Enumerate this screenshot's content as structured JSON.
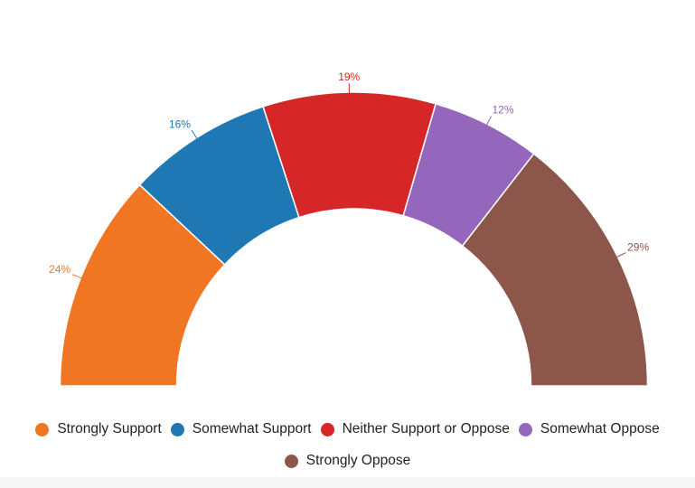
{
  "chart_data": {
    "type": "pie",
    "variant": "half-donut",
    "categories": [
      "Strongly Support",
      "Somewhat Support",
      "Neither Support or Oppose",
      "Somewhat Oppose",
      "Strongly Oppose"
    ],
    "values": [
      24,
      16,
      19,
      12,
      29
    ],
    "value_labels": [
      "24%",
      "16%",
      "19%",
      "12%",
      "29%"
    ],
    "colors": [
      "#f07623",
      "#1f77b4",
      "#d62728",
      "#9467bd",
      "#8c564b"
    ],
    "legend_position": "bottom"
  }
}
